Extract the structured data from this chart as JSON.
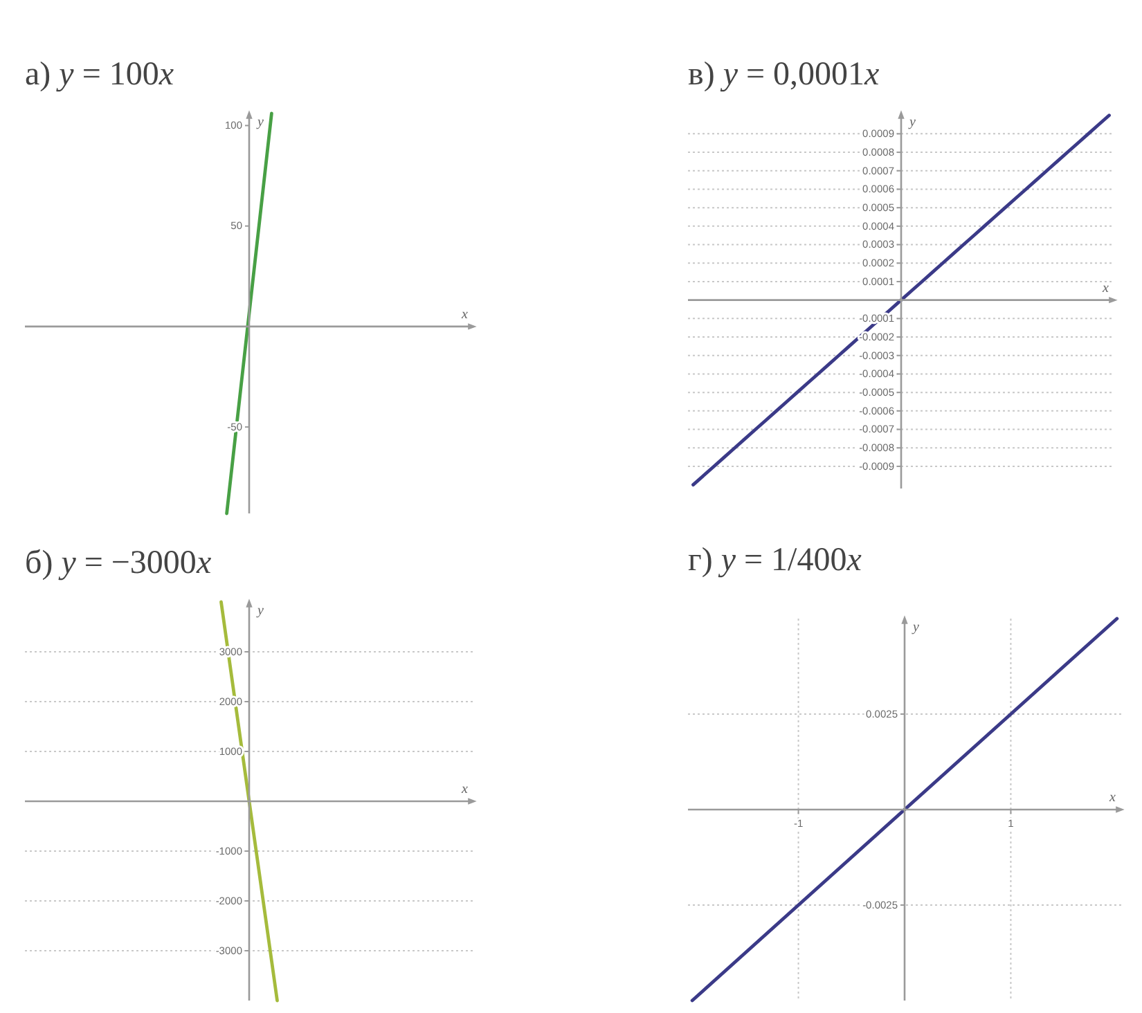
{
  "chart_data": [
    {
      "type": "line",
      "title": "а) y = 100x",
      "xlabel": "x",
      "ylabel": "y",
      "categories": [
        null,
        null,
        null,
        null,
        null,
        null,
        null,
        null,
        null,
        null
      ],
      "values": [
        null,
        null,
        null,
        null,
        -93,
        106,
        null,
        null,
        null,
        null
      ],
      "color": "#48a045",
      "ylim": [
        -93,
        106
      ],
      "yticks": [
        -50,
        50,
        100
      ],
      "tick_labels": "y"
    },
    {
      "type": "line",
      "title": "в) y = 0,0001x",
      "xlabel": "x",
      "ylabel": "y",
      "categories": [
        null,
        null,
        null,
        null,
        null,
        null,
        null,
        null,
        null,
        null,
        null,
        null,
        null,
        null,
        null,
        null,
        null,
        null,
        null,
        null,
        null,
        null,
        null,
        null,
        null,
        null,
        null,
        null,
        null,
        null,
        null,
        null,
        null,
        null,
        null,
        null,
        null,
        null,
        null,
        null,
        null
      ],
      "values": [
        -0.001,
        -0.00095,
        -0.0009,
        -0.00085,
        -0.0008,
        -0.00075,
        -0.0007,
        -0.00065,
        -0.0006,
        -0.00055,
        -0.0005,
        -0.00045,
        -0.0004,
        -0.00035,
        -0.0003,
        -0.00025,
        -0.0002,
        -0.00015,
        -0.0001,
        -5e-05,
        0,
        5e-05,
        0.0001,
        0.00015,
        0.0002,
        0.00025,
        0.0003,
        0.00035,
        0.0004,
        0.00045,
        0.0005,
        0.00055,
        0.0006,
        0.00065,
        0.0007,
        0.00075,
        0.0008,
        0.00085,
        0.0009,
        0.00095,
        0.001
      ],
      "color": "#3b3a88",
      "ylim": [
        -0.00102,
        0.00101
      ],
      "yticks": [
        -0.0009,
        -0.0008,
        -0.0007,
        -0.0006,
        -0.0005,
        -0.0004,
        -0.0003,
        -0.0002,
        -0.0001,
        0.0001,
        0.0002,
        0.0003,
        0.0004,
        0.0005,
        0.0006,
        0.0007,
        0.0008,
        0.0009
      ],
      "grid": "y",
      "tick_labels": "y"
    },
    {
      "type": "line",
      "title": "б) y = −3000x",
      "xlabel": "x",
      "ylabel": "y",
      "categories": [
        null,
        null,
        null,
        null,
        null,
        null,
        null,
        null
      ],
      "values": [
        null,
        null,
        null,
        4000,
        -4000,
        null,
        null,
        null
      ],
      "color": "#a5bb3c",
      "ylim": [
        -4000,
        4000
      ],
      "yticks": [
        -3000,
        -2000,
        -1000,
        1000,
        2000,
        3000
      ],
      "grid": "y",
      "tick_labels": "y"
    },
    {
      "type": "line",
      "title": "г) y = 1/400x",
      "xlabel": "x",
      "ylabel": "y",
      "x": [
        -2,
        2
      ],
      "values": [
        -0.005,
        0.005
      ],
      "color": "#3b3a88",
      "xlim": [
        -2.04,
        2.04
      ],
      "xticks": [
        -1,
        1
      ],
      "ylim": [
        -0.005,
        0.005
      ],
      "yticks": [
        -0.0025,
        0.0025
      ],
      "grid": true
    }
  ]
}
